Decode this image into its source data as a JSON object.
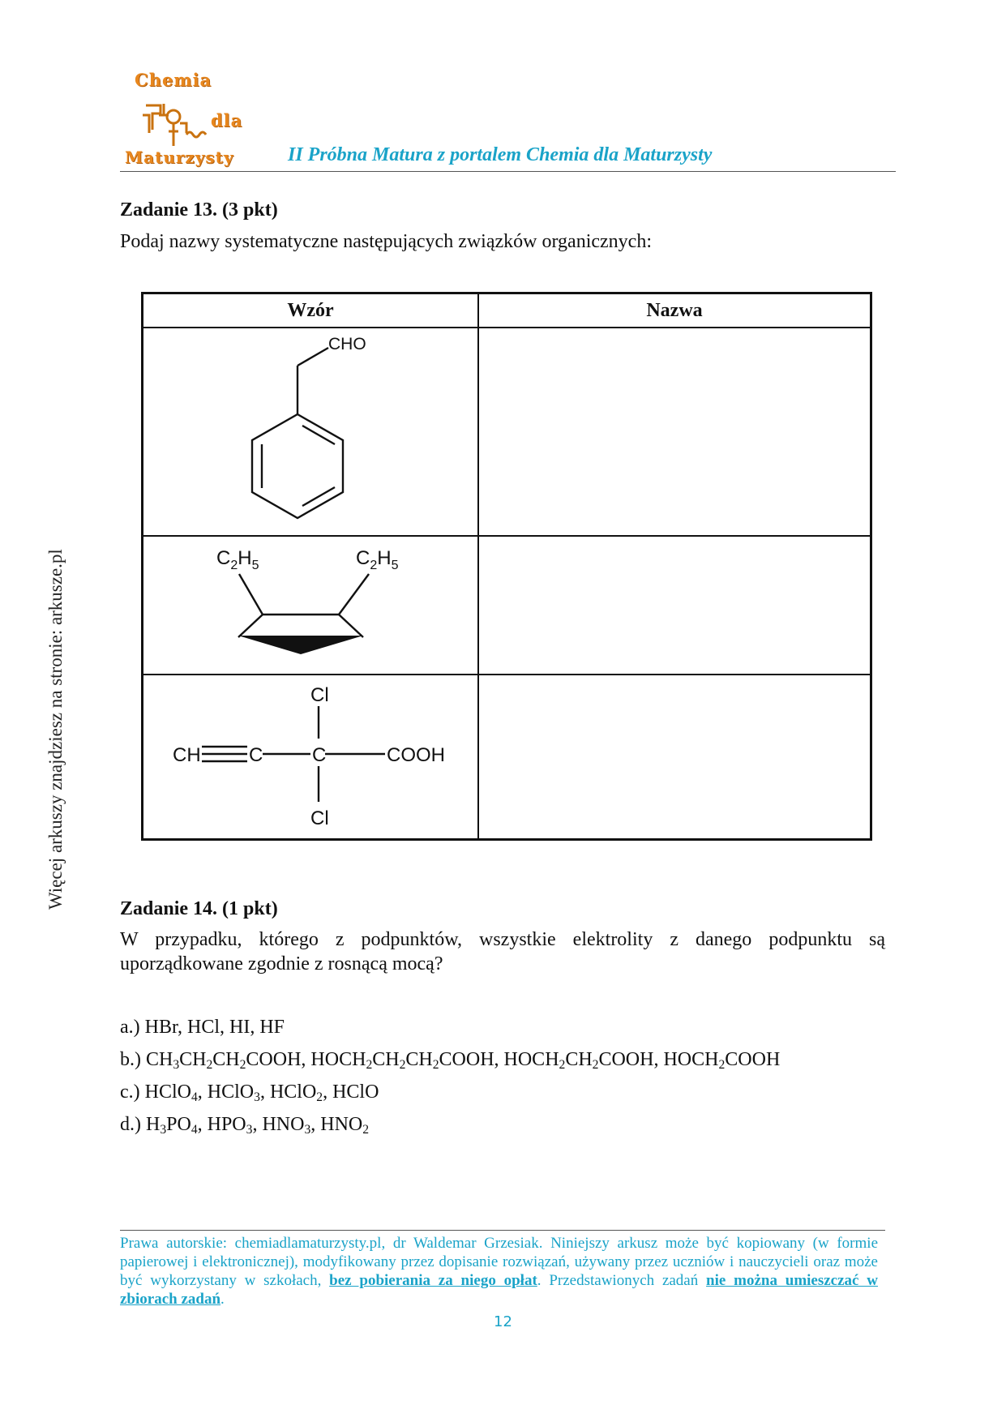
{
  "header": {
    "logo": {
      "line1": "Chemia",
      "line2": "dla",
      "line3": "Maturzysty"
    },
    "title": "II Próbna Matura z portalem Chemia dla Maturzysty"
  },
  "side_text": "Więcej arkuszy znajdziesz na stronie: arkusze.pl",
  "task13": {
    "title": "Zadanie 13. (3 pkt)",
    "text": "Podaj nazwy systematyczne następujących związków organicznych:",
    "table": {
      "col1": "Wzór",
      "col2": "Nazwa",
      "formula1": {
        "label": "CHO"
      },
      "formula2": {
        "left": "C",
        "left_n": "2",
        "left_h": "H",
        "left_m": "5",
        "right": "C",
        "right_n": "2",
        "right_h": "H",
        "right_m": "5"
      },
      "formula3": {
        "cl_top": "Cl",
        "cl_bottom": "Cl",
        "ch": "CH",
        "c1": "C",
        "c2": "C",
        "cooh": "COOH"
      }
    }
  },
  "task14": {
    "title": "Zadanie 14. (1 pkt)",
    "text_line1": "W przypadku, którego z podpunktów, wszystkie elektrolity z danego podpunktu są",
    "text_line2": "uporządkowane zgodnie z rosnącą mocą?",
    "options": {
      "a": "a.) HBr, HCl, HI, HF",
      "b_prefix": "b.) ",
      "c_prefix": "c.) ",
      "d_prefix": "d.) "
    }
  },
  "footer": {
    "text1": "Prawa autorskie: chemiadlamaturzysty.pl, dr Waldemar Grzesiak. Niniejszy arkusz może być kopiowany (w formie papierowej i elektronicznej), modyfikowany przez dopisanie rozwiązań, używany przez uczniów i nauczycieli oraz może być wykorzystany w szkołach, ",
    "bold1": "bez pobierania za niego opłat",
    "text2": ". Przedstawionych zadań ",
    "bold2": "nie można umieszczać w zbiorach zadań",
    "text3": ".",
    "page": "12"
  },
  "colors": {
    "accent": "#1aa3c8",
    "logo": "#e8871e"
  }
}
